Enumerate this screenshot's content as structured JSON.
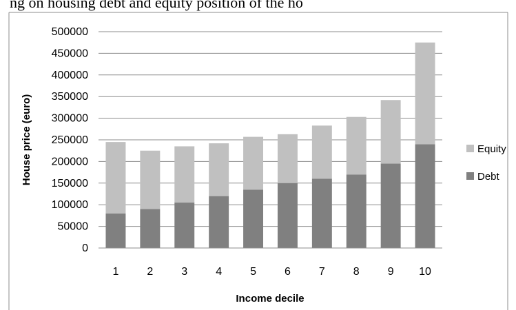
{
  "caption": "ng on housing debt and equity position of the ho",
  "chart_data": {
    "type": "bar",
    "stacked": true,
    "categories": [
      "1",
      "2",
      "3",
      "4",
      "5",
      "6",
      "7",
      "8",
      "9",
      "10"
    ],
    "series": [
      {
        "name": "Debt",
        "values": [
          80000,
          90000,
          105000,
          120000,
          135000,
          150000,
          160000,
          170000,
          195000,
          240000
        ],
        "color": "#808080"
      },
      {
        "name": "Equity",
        "values": [
          165000,
          135000,
          130000,
          122000,
          122000,
          113000,
          123000,
          133000,
          147000,
          235000
        ],
        "color": "#c0c0c0"
      }
    ],
    "xlabel": "Income decile",
    "ylabel": "House price (euro)",
    "ylim": [
      0,
      500000
    ],
    "yticks": [
      "0",
      "50000",
      "100000",
      "150000",
      "200000",
      "250000",
      "300000",
      "350000",
      "400000",
      "450000",
      "500000"
    ],
    "grid": true,
    "legend": "right",
    "legend_order": [
      "Equity",
      "Debt"
    ]
  }
}
